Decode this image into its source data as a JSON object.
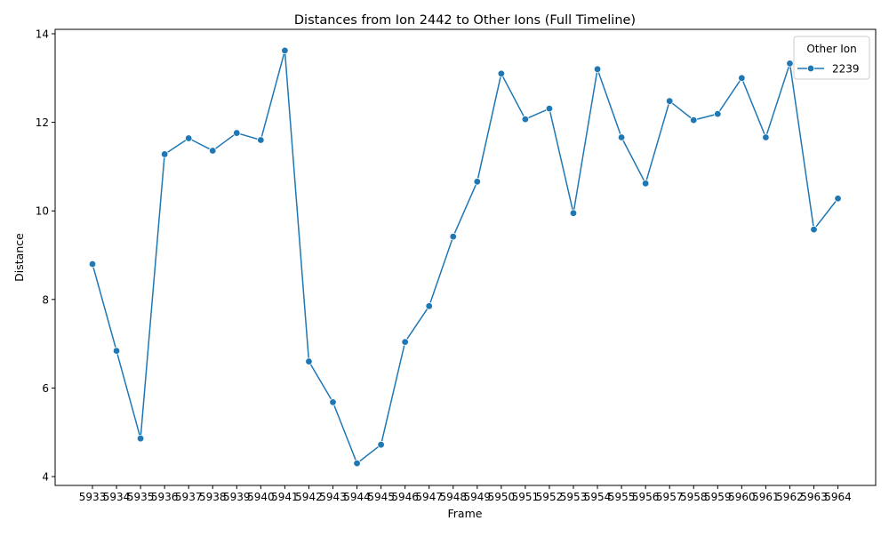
{
  "chart_data": {
    "type": "line",
    "title": "Distances from Ion 2442 to Other Ions (Full Timeline)",
    "xlabel": "Frame",
    "ylabel": "Distance",
    "x": [
      "5933",
      "5934",
      "5935",
      "5936",
      "5937",
      "5938",
      "5939",
      "5940",
      "5941",
      "5942",
      "5943",
      "5944",
      "5945",
      "5946",
      "5947",
      "5948",
      "5949",
      "5950",
      "5951",
      "5952",
      "5953",
      "5954",
      "5955",
      "5956",
      "5957",
      "5958",
      "5959",
      "5960",
      "5961",
      "5962",
      "5963",
      "5964"
    ],
    "ylim": [
      3.8,
      14.1
    ],
    "yticks": [
      4,
      6,
      8,
      10,
      12,
      14
    ],
    "ytick_labels": [
      "4",
      "6",
      "8",
      "10",
      "12",
      "14"
    ],
    "grid": false,
    "legend": {
      "title": "Other Ion",
      "placement": "top-right"
    },
    "series": [
      {
        "name": "2239",
        "color": "#1f77b4",
        "marker": "circle",
        "values": [
          8.8,
          6.84,
          4.86,
          11.28,
          11.64,
          11.36,
          11.76,
          11.6,
          13.62,
          6.6,
          5.68,
          4.3,
          4.72,
          7.04,
          7.85,
          9.42,
          10.66,
          13.1,
          12.07,
          12.31,
          9.95,
          13.2,
          11.66,
          10.62,
          12.48,
          12.05,
          12.19,
          13.0,
          11.66,
          13.33,
          9.58,
          10.28
        ]
      }
    ]
  }
}
